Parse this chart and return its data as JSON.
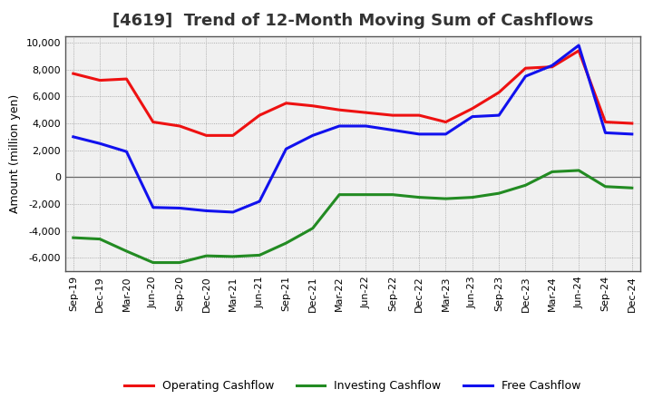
{
  "title": "[4619]  Trend of 12-Month Moving Sum of Cashflows",
  "ylabel": "Amount (million yen)",
  "ylim": [
    -7000,
    10500
  ],
  "yticks": [
    -6000,
    -4000,
    -2000,
    0,
    2000,
    4000,
    6000,
    8000,
    10000
  ],
  "xlabel_dates": [
    "Sep-19",
    "Dec-19",
    "Mar-20",
    "Jun-20",
    "Sep-20",
    "Dec-20",
    "Mar-21",
    "Jun-21",
    "Sep-21",
    "Dec-21",
    "Mar-22",
    "Jun-22",
    "Sep-22",
    "Dec-22",
    "Mar-23",
    "Jun-23",
    "Sep-23",
    "Dec-23",
    "Mar-24",
    "Jun-24",
    "Sep-24",
    "Dec-24"
  ],
  "operating_cashflow": [
    7700,
    7200,
    7300,
    4100,
    3800,
    3100,
    3100,
    4600,
    5500,
    5300,
    5000,
    4800,
    4600,
    4600,
    4100,
    5100,
    6300,
    8100,
    8200,
    9400,
    4100,
    4000
  ],
  "investing_cashflow": [
    -4500,
    -4600,
    -5500,
    -6350,
    -6350,
    -5850,
    -5900,
    -5800,
    -4900,
    -3800,
    -1300,
    -1300,
    -1300,
    -1500,
    -1600,
    -1500,
    -1200,
    -600,
    400,
    500,
    -700,
    -800
  ],
  "free_cashflow": [
    3000,
    2500,
    1900,
    -2250,
    -2300,
    -2500,
    -2600,
    -1800,
    2100,
    3100,
    3800,
    3800,
    3500,
    3200,
    3200,
    4500,
    4600,
    7500,
    8300,
    9800,
    3300,
    3200
  ],
  "operating_color": "#EE1111",
  "investing_color": "#228B22",
  "free_color": "#1111EE",
  "linewidth": 2.2,
  "background_color": "#FFFFFF",
  "grid_color": "#999999",
  "plot_bg_color": "#F0F0F0",
  "title_fontsize": 13,
  "axis_fontsize": 9,
  "tick_fontsize": 8,
  "legend_fontsize": 9
}
